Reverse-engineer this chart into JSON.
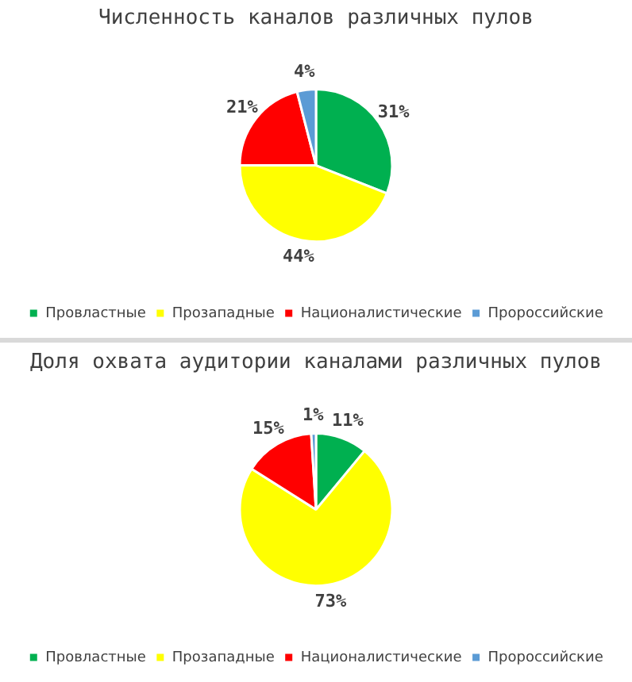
{
  "chart_data": [
    {
      "type": "pie",
      "title": "Численность каналов различных пулов",
      "categories": [
        "Провластные",
        "Прозападные",
        "Националистические",
        "Пророссийские"
      ],
      "values": [
        31,
        44,
        21,
        4
      ],
      "colors": [
        "#00b050",
        "#ffff00",
        "#ff0000",
        "#5b9bd5"
      ],
      "value_labels": [
        "31%",
        "44%",
        "21%",
        "4%"
      ],
      "legend": "bottom"
    },
    {
      "type": "pie",
      "title": "Доля охвата аудитории каналами различных пулов",
      "categories": [
        "Провластные",
        "Прозападные",
        "Националистические",
        "Пророссийские"
      ],
      "values": [
        11,
        73,
        15,
        1
      ],
      "colors": [
        "#00b050",
        "#ffff00",
        "#ff0000",
        "#5b9bd5"
      ],
      "value_labels": [
        "11%",
        "73%",
        "15%",
        "1%"
      ],
      "legend": "bottom"
    }
  ]
}
